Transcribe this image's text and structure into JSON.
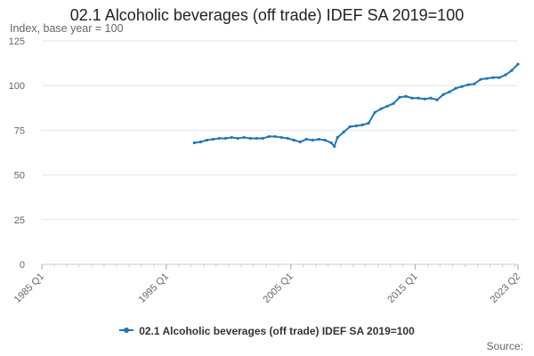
{
  "chart_data": {
    "type": "line",
    "title": "02.1 Alcoholic beverages (off trade) IDEF SA 2019=100",
    "ylabel": "Index, base year = 100",
    "xlabel": "",
    "ylim": [
      0,
      125
    ],
    "yticks": [
      "0",
      "25",
      "50",
      "75",
      "100",
      "125"
    ],
    "xlim": [
      1985,
      2023.25
    ],
    "xticks": [
      {
        "label": "1985 Q1",
        "value": 1985
      },
      {
        "label": "1995 Q1",
        "value": 1995
      },
      {
        "label": "2005 Q1",
        "value": 2005
      },
      {
        "label": "2015 Q1",
        "value": 2015
      },
      {
        "label": "2023 Q2",
        "value": 2023.25
      }
    ],
    "grid": true,
    "legend_position": "bottom",
    "series": [
      {
        "name": "02.1 Alcoholic beverages (off trade) IDEF SA 2019=100",
        "color": "#1f77b4",
        "x": [
          1997.25,
          1997.75,
          1998.25,
          1998.75,
          1999.25,
          1999.75,
          2000.25,
          2000.75,
          2001.25,
          2001.75,
          2002.25,
          2002.75,
          2003.25,
          2003.75,
          2004.25,
          2004.75,
          2005.25,
          2005.75,
          2006.25,
          2006.75,
          2007.25,
          2007.75,
          2008.25,
          2008.5,
          2008.75,
          2009.25,
          2009.75,
          2010.25,
          2010.75,
          2011.25,
          2011.75,
          2012.25,
          2012.75,
          2013.25,
          2013.75,
          2014.25,
          2014.75,
          2015.25,
          2015.75,
          2016.25,
          2016.75,
          2017.25,
          2017.75,
          2018.25,
          2018.75,
          2019.25,
          2019.75,
          2020.25,
          2020.75,
          2021.25,
          2021.75,
          2022.25,
          2022.75,
          2023.25
        ],
        "values": [
          68,
          68.5,
          69.5,
          70,
          70.5,
          70.5,
          71,
          70.5,
          71,
          70.5,
          70.5,
          70.5,
          71.5,
          71.5,
          71,
          70.5,
          69.5,
          68.5,
          70,
          69.5,
          70,
          69.5,
          68,
          66,
          71,
          74,
          77,
          77.5,
          78,
          79,
          85,
          87,
          88.5,
          90,
          93.5,
          94,
          93,
          93,
          92.5,
          93,
          92,
          95,
          96.5,
          98.5,
          99.5,
          100.5,
          101,
          103.5,
          104,
          104.5,
          104.5,
          106,
          108.5,
          112
        ]
      }
    ]
  },
  "legend": {
    "label": "02.1 Alcoholic beverages (off trade) IDEF SA 2019=100"
  },
  "source": {
    "label": "Source:"
  }
}
